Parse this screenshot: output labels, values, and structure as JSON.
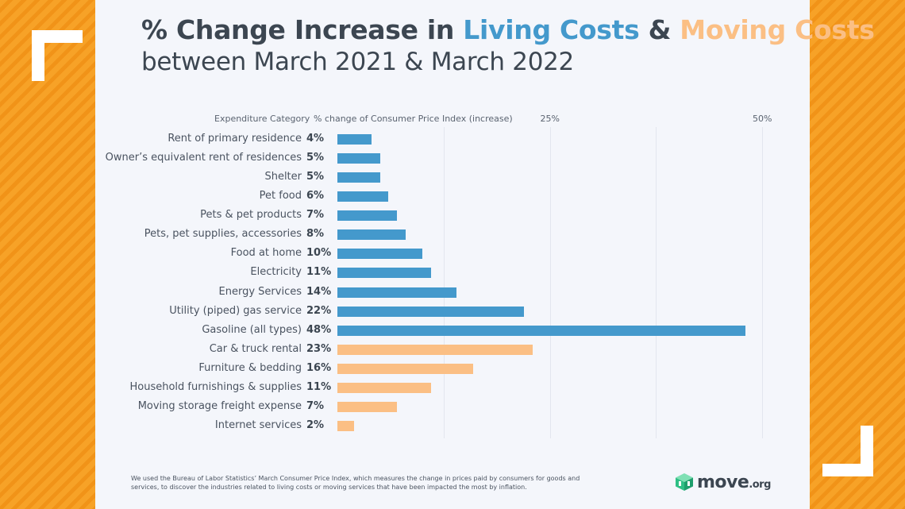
{
  "title": {
    "part1": "% Change Increase in ",
    "living": "Living Costs",
    "amp": " & ",
    "moving": "Moving Costs",
    "subtitle": "between March 2021 & March 2022"
  },
  "colors": {
    "living": "#4499cc",
    "moving": "#fbbf84",
    "background": "#f39a1f"
  },
  "chart_data": {
    "type": "bar",
    "orientation": "horizontal",
    "header_category": "Expenditure Category",
    "header_value": "% change of Consumer Price Index (increase)",
    "xlim": [
      0,
      50
    ],
    "ticks": [
      {
        "value": 25,
        "label": "25%"
      },
      {
        "value": 50,
        "label": "50%"
      }
    ],
    "grid": true,
    "categories": [
      "Rent of primary residence",
      "Owner’s equivalent rent of residences",
      "Shelter",
      "Pet food",
      "Pets & pet products",
      "Pets, pet supplies, accessories",
      "Food at home",
      "Electricity",
      "Energy Services",
      "Utility (piped) gas service",
      "Gasoline (all types)",
      "Car & truck rental",
      "Furniture & bedding",
      "Household furnishings & supplies",
      "Moving storage freight expense",
      "Internet services"
    ],
    "values": [
      4,
      5,
      5,
      6,
      7,
      8,
      10,
      11,
      14,
      22,
      48,
      23,
      16,
      11,
      7,
      2
    ],
    "labels": [
      "4%",
      "5%",
      "5%",
      "6%",
      "7%",
      "8%",
      "10%",
      "11%",
      "14%",
      "22%",
      "48%",
      "23%",
      "16%",
      "11%",
      "7%",
      "2%"
    ],
    "groups": [
      "living",
      "living",
      "living",
      "living",
      "living",
      "living",
      "living",
      "living",
      "living",
      "living",
      "living",
      "moving",
      "moving",
      "moving",
      "moving",
      "moving"
    ]
  },
  "footnote": "We used the Bureau of Labor Statistics’ March Consumer Price Index, which measures the change in prices paid by consumers for goods and services, to discover the industries related to living costs or moving services that have been impacted the most by inflation.",
  "logo": {
    "name": "move",
    "tld": ".org",
    "icon": "move-cube-icon"
  }
}
